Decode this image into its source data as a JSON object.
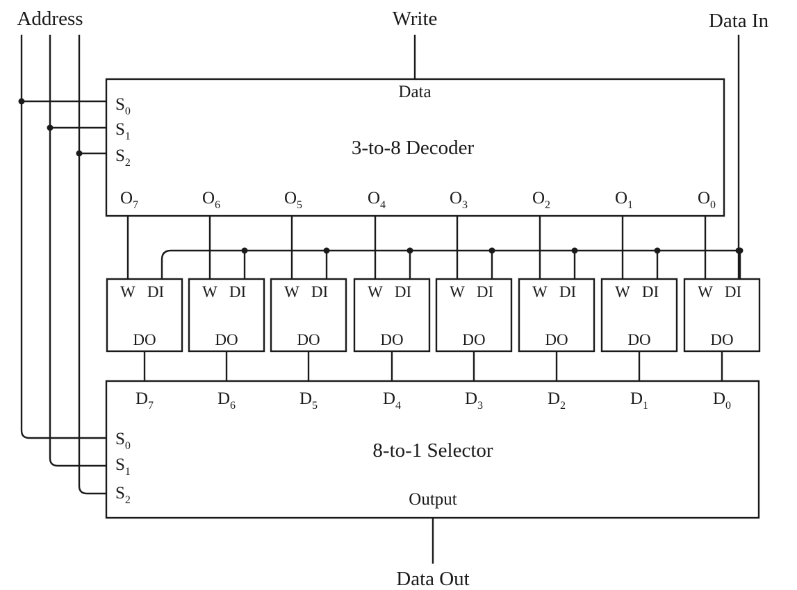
{
  "labels": {
    "address": "Address",
    "write": "Write",
    "data_in": "Data In",
    "data_out": "Data Out"
  },
  "decoder": {
    "title": "3-to-8 Decoder",
    "data_pin": "Data",
    "select_pins": [
      {
        "base": "S",
        "sub": "0"
      },
      {
        "base": "S",
        "sub": "1"
      },
      {
        "base": "S",
        "sub": "2"
      }
    ],
    "outputs": [
      {
        "base": "O",
        "sub": "7"
      },
      {
        "base": "O",
        "sub": "6"
      },
      {
        "base": "O",
        "sub": "5"
      },
      {
        "base": "O",
        "sub": "4"
      },
      {
        "base": "O",
        "sub": "3"
      },
      {
        "base": "O",
        "sub": "2"
      },
      {
        "base": "O",
        "sub": "1"
      },
      {
        "base": "O",
        "sub": "0"
      }
    ]
  },
  "latch": {
    "w_pin": "W",
    "di_pin": "DI",
    "do_pin": "DO",
    "count": 8
  },
  "selector": {
    "title": "8-to-1 Selector",
    "output_pin": "Output",
    "select_pins": [
      {
        "base": "S",
        "sub": "0"
      },
      {
        "base": "S",
        "sub": "1"
      },
      {
        "base": "S",
        "sub": "2"
      }
    ],
    "inputs": [
      {
        "base": "D",
        "sub": "7"
      },
      {
        "base": "D",
        "sub": "6"
      },
      {
        "base": "D",
        "sub": "5"
      },
      {
        "base": "D",
        "sub": "4"
      },
      {
        "base": "D",
        "sub": "3"
      },
      {
        "base": "D",
        "sub": "2"
      },
      {
        "base": "D",
        "sub": "1"
      },
      {
        "base": "D",
        "sub": "0"
      }
    ]
  },
  "colors": {
    "line": "#1a1a1a",
    "background": "#ffffff"
  }
}
